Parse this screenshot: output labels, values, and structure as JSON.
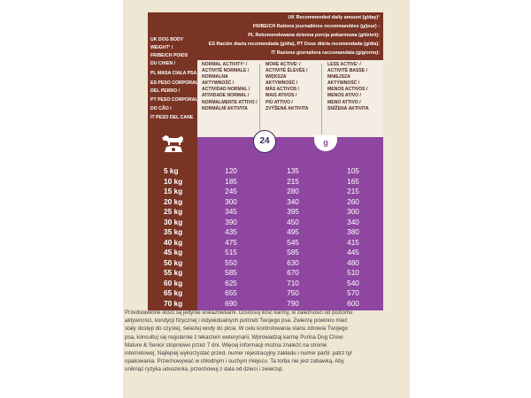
{
  "recommended": [
    "UK Recommended daily amount (g/day)¹",
    "FR/BE/CH Rations journalières recommandées (g/jour) :",
    "PL Rekomendowana dzienna porcja pokarmowa (g/dzień):",
    "ES Ración diaria recomendada (g/día), PT Dose diária recomendada (g/dia):",
    "IT Razione giornaliera raccomandata (g/giorno):"
  ],
  "body_weight": [
    "UK DOG BODY",
    "WEIGHT¹ /",
    "FR/BE/CH POIDS",
    "DU CHIEN /",
    "PL MASA CIAŁA PSA /",
    "ES PESO CORPORAL",
    "DEL PERRO /",
    "PT PESO CORPORAL",
    "DO CÃO /",
    "IT PESO DEL CANE"
  ],
  "activity": {
    "normal": [
      "NORMAL ACTIVITY¹ /",
      "ACTIVITÉ NORMALE /",
      "NORMALNA",
      "AKTYWNOŚĆ /",
      "ACTIVIDAD NORMAL /",
      "ATIVIDADE NORMAL /",
      "NORMALMENTE ATTIVO /",
      "NORMÁLNÍ AKTIVITA"
    ],
    "more": [
      "MORE ACTIVE¹ /",
      "ACTIVITÉ ÉLEVÉE /",
      "WIĘKSZA",
      "AKTYWNOŚĆ /",
      "MÁS ACTIVOS /",
      "MAIS ATIVOS /",
      "PIÙ ATTIVO /",
      "ZVÝŠENÁ AKTIVITA"
    ],
    "less": [
      "LESS ACTIVE¹ /",
      "ACTIVITÉ BASSE /",
      "MNIEJSZA",
      "AKTYWNOŚĆ /",
      "MENOS ACTIVOS /",
      "MENOS ATIVO /",
      "MENO ATTIVO /",
      "SNÍŽENÁ AKTIVITA"
    ]
  },
  "icons": {
    "clock_label": "24",
    "bowl_label": "g"
  },
  "table": [
    {
      "weight": "5 kg",
      "normal": "120",
      "more": "135",
      "less": "105"
    },
    {
      "weight": "10 kg",
      "normal": "185",
      "more": "215",
      "less": "165"
    },
    {
      "weight": "15 kg",
      "normal": "245",
      "more": "280",
      "less": "215"
    },
    {
      "weight": "20 kg",
      "normal": "300",
      "more": "340",
      "less": "260"
    },
    {
      "weight": "25 kg",
      "normal": "345",
      "more": "395",
      "less": "300"
    },
    {
      "weight": "30 kg",
      "normal": "390",
      "more": "450",
      "less": "340"
    },
    {
      "weight": "35 kg",
      "normal": "435",
      "more": "495",
      "less": "380"
    },
    {
      "weight": "40 kg",
      "normal": "475",
      "more": "545",
      "less": "415"
    },
    {
      "weight": "45 kg",
      "normal": "515",
      "more": "585",
      "less": "445"
    },
    {
      "weight": "50 kg",
      "normal": "550",
      "more": "630",
      "less": "480"
    },
    {
      "weight": "55 kg",
      "normal": "585",
      "more": "670",
      "less": "510"
    },
    {
      "weight": "60 kg",
      "normal": "625",
      "more": "710",
      "less": "540"
    },
    {
      "weight": "65 kg",
      "normal": "655",
      "more": "750",
      "less": "570"
    },
    {
      "weight": "70 kg",
      "normal": "690",
      "more": "790",
      "less": "600"
    }
  ],
  "footnote": [
    "Przedstawione ilości są jedynie wskazówkami. Dostosuj ilość karmy, w zależności od poziomu",
    "aktywności, kondycji fizycznej i indywidualnych potrzeb Twojego psa. Zwierzę powinno mieć",
    "stały dostęp do czystej, świeżej wody do picia. W celu kontrolowania stanu zdrowia Twojego",
    "psa, konsultuj się regularnie z lekarzem weterynarii. Wprowadzaj karmę Purina Dog Chow",
    "Mature & Senior stopniowo przez 7 dni. Więcej informacji można znaleźć na stronie",
    "internetowej. Najlepiej wykorzystać przed, numer rejestracyjny zakładu i numer partii: patrz tył",
    "opakowania. Przechowywać w chłodnym i suchym miejscu. Ta torba nie jest zabawką. Aby",
    "uniknąć ryzyka uduszenia, przechowuj z dala od dzieci i zwierząt."
  ],
  "colors": {
    "brown": "#7a3424",
    "purple": "#8e46a0",
    "cream": "#f3ede4",
    "background": "#efe6d4"
  }
}
